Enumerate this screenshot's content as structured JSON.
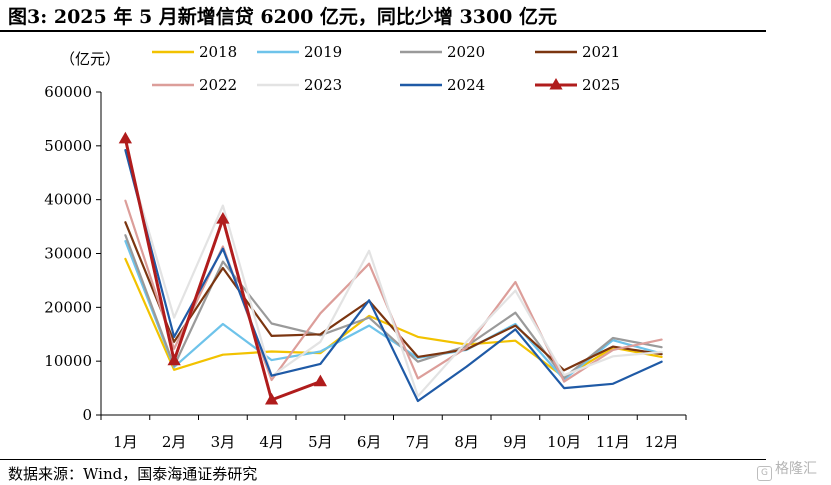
{
  "title": "图3:  2025 年 5 月新增信贷 6200 亿元，同比少增 3300 亿元",
  "source": "数据来源：Wind，国泰海通证券研究",
  "watermark": "格隆汇",
  "chart_data": {
    "type": "line",
    "ylabel": "（亿元）",
    "ylim": [
      0,
      60000
    ],
    "yticks": [
      0,
      10000,
      20000,
      30000,
      40000,
      50000,
      60000
    ],
    "categories": [
      "1月",
      "2月",
      "3月",
      "4月",
      "5月",
      "6月",
      "7月",
      "8月",
      "9月",
      "10月",
      "11月",
      "12月"
    ],
    "legend_position": "top",
    "grid": false,
    "series": [
      {
        "name": "2018",
        "color": "#F2C200",
        "values": [
          29000,
          8400,
          11200,
          11800,
          11500,
          18400,
          14500,
          13100,
          13800,
          7000,
          12500,
          10800
        ]
      },
      {
        "name": "2019",
        "color": "#6EC3EA",
        "values": [
          32300,
          8900,
          16900,
          10200,
          11800,
          16600,
          10600,
          12100,
          16900,
          6600,
          13900,
          11400
        ]
      },
      {
        "name": "2020",
        "color": "#9A9A9A",
        "values": [
          33400,
          9100,
          28500,
          17000,
          14800,
          18100,
          9900,
          12800,
          19000,
          6900,
          14300,
          12600
        ]
      },
      {
        "name": "2021",
        "color": "#7B3510",
        "values": [
          35800,
          13600,
          27300,
          14700,
          15000,
          21200,
          10800,
          12200,
          16600,
          8300,
          12700,
          11300
        ]
      },
      {
        "name": "2022",
        "color": "#DC9E9A",
        "values": [
          39800,
          12300,
          31300,
          6500,
          18900,
          28100,
          6800,
          12500,
          24700,
          6200,
          12100,
          14000
        ]
      },
      {
        "name": "2023",
        "color": "#E3E3E3",
        "values": [
          49000,
          18100,
          38900,
          7200,
          13600,
          30500,
          3500,
          13600,
          23100,
          7400,
          10900,
          11700
        ]
      },
      {
        "name": "2024",
        "color": "#1F5AA6",
        "values": [
          49200,
          14500,
          30900,
          7300,
          9500,
          21300,
          2600,
          9000,
          15900,
          5000,
          5800,
          9900
        ]
      },
      {
        "name": "2025",
        "color": "#B01C1C",
        "marker": "triangle",
        "values": [
          51300,
          10100,
          36400,
          2800,
          6200,
          null,
          null,
          null,
          null,
          null,
          null,
          null
        ]
      }
    ]
  }
}
